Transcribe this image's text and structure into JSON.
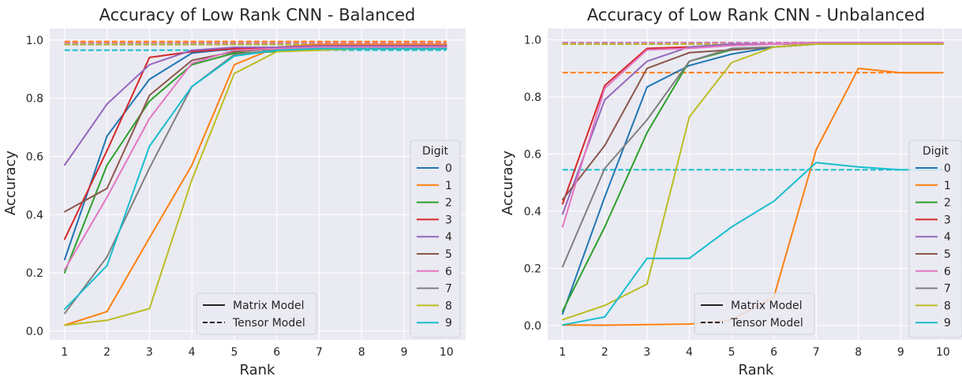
{
  "chart_data": [
    {
      "type": "line",
      "title": "Accuracy of Low Rank CNN - Balanced",
      "xlabel": "Rank",
      "ylabel": "Accuracy",
      "xlim": [
        0.65,
        10.45
      ],
      "ylim": [
        -0.03,
        1.04
      ],
      "xticks": [
        1,
        2,
        3,
        4,
        5,
        6,
        7,
        8,
        9,
        10
      ],
      "yticks": [
        0.0,
        0.2,
        0.4,
        0.6,
        0.8,
        1.0
      ],
      "ytick_labels": [
        "0.0",
        "0.2",
        "0.4",
        "0.6",
        "0.8",
        "1.0"
      ],
      "grid": true,
      "legend_title": "Digit",
      "legend_position": "center-right",
      "style_legend_position": "bottom-center",
      "x": [
        1,
        2,
        3,
        4,
        5,
        6,
        7,
        8,
        9,
        10
      ],
      "series": [
        {
          "name": "0",
          "color": "#1f77b4",
          "values": [
            0.245,
            0.67,
            0.865,
            0.955,
            0.97,
            0.975,
            0.98,
            0.98,
            0.98,
            0.98
          ]
        },
        {
          "name": "1",
          "color": "#ff7f0e",
          "values": [
            0.02,
            0.067,
            0.32,
            0.57,
            0.915,
            0.975,
            0.985,
            0.985,
            0.985,
            0.985
          ]
        },
        {
          "name": "2",
          "color": "#2ca02c",
          "values": [
            0.2,
            0.57,
            0.79,
            0.915,
            0.955,
            0.96,
            0.97,
            0.97,
            0.97,
            0.97
          ]
        },
        {
          "name": "3",
          "color": "#d62728",
          "values": [
            0.315,
            0.62,
            0.94,
            0.96,
            0.97,
            0.975,
            0.98,
            0.98,
            0.98,
            0.98
          ]
        },
        {
          "name": "4",
          "color": "#9467bd",
          "values": [
            0.57,
            0.78,
            0.915,
            0.965,
            0.975,
            0.975,
            0.98,
            0.98,
            0.98,
            0.98
          ]
        },
        {
          "name": "5",
          "color": "#8c564b",
          "values": [
            0.41,
            0.49,
            0.81,
            0.93,
            0.96,
            0.97,
            0.975,
            0.975,
            0.975,
            0.975
          ]
        },
        {
          "name": "6",
          "color": "#e377c2",
          "values": [
            0.21,
            0.46,
            0.73,
            0.92,
            0.965,
            0.97,
            0.975,
            0.975,
            0.975,
            0.975
          ]
        },
        {
          "name": "7",
          "color": "#7f7f7f",
          "values": [
            0.06,
            0.255,
            0.56,
            0.84,
            0.95,
            0.965,
            0.97,
            0.97,
            0.97,
            0.97
          ]
        },
        {
          "name": "8",
          "color": "#bcbd22",
          "values": [
            0.02,
            0.037,
            0.077,
            0.52,
            0.885,
            0.96,
            0.965,
            0.97,
            0.97,
            0.97
          ]
        },
        {
          "name": "9",
          "color": "#17becf",
          "values": [
            0.075,
            0.225,
            0.635,
            0.84,
            0.945,
            0.965,
            0.97,
            0.97,
            0.97,
            0.97
          ]
        }
      ],
      "tensor_reference": [
        0.985,
        0.995,
        0.99,
        0.985,
        0.99,
        0.985,
        0.99,
        0.985,
        0.985,
        0.965
      ],
      "style_legend": [
        "Matrix Model",
        "Tensor Model"
      ]
    },
    {
      "type": "line",
      "title": "Accuracy of Low Rank CNN - Unbalanced",
      "xlabel": "Rank",
      "ylabel": "Accuracy",
      "xlim": [
        0.65,
        10.45
      ],
      "ylim": [
        -0.05,
        1.04
      ],
      "xticks": [
        1,
        2,
        3,
        4,
        5,
        6,
        7,
        8,
        9,
        10
      ],
      "yticks": [
        0.0,
        0.2,
        0.4,
        0.6,
        0.8,
        1.0
      ],
      "ytick_labels": [
        "0.0",
        "0.2",
        "0.4",
        "0.6",
        "0.8",
        "1.0"
      ],
      "grid": true,
      "legend_title": "Digit",
      "legend_position": "right",
      "style_legend_position": "bottom-center",
      "x": [
        1,
        2,
        3,
        4,
        5,
        6,
        7,
        8,
        9,
        10
      ],
      "series": [
        {
          "name": "0",
          "color": "#1f77b4",
          "values": [
            0.04,
            0.45,
            0.835,
            0.91,
            0.95,
            0.975,
            0.985,
            0.985,
            0.985,
            0.985
          ]
        },
        {
          "name": "1",
          "color": "#ff7f0e",
          "values": [
            0.002,
            0.001,
            0.003,
            0.005,
            0.02,
            0.1,
            0.615,
            0.9,
            0.885,
            0.885
          ]
        },
        {
          "name": "2",
          "color": "#2ca02c",
          "values": [
            0.05,
            0.345,
            0.675,
            0.925,
            0.965,
            0.975,
            0.985,
            0.985,
            0.985,
            0.985
          ]
        },
        {
          "name": "3",
          "color": "#d62728",
          "values": [
            0.425,
            0.84,
            0.97,
            0.975,
            0.98,
            0.985,
            0.99,
            0.99,
            0.99,
            0.99
          ]
        },
        {
          "name": "4",
          "color": "#9467bd",
          "values": [
            0.39,
            0.79,
            0.925,
            0.975,
            0.985,
            0.985,
            0.99,
            0.99,
            0.99,
            0.99
          ]
        },
        {
          "name": "5",
          "color": "#8c564b",
          "values": [
            0.44,
            0.63,
            0.9,
            0.955,
            0.965,
            0.975,
            0.985,
            0.985,
            0.985,
            0.985
          ]
        },
        {
          "name": "6",
          "color": "#e377c2",
          "values": [
            0.345,
            0.83,
            0.965,
            0.97,
            0.98,
            0.985,
            0.99,
            0.99,
            0.99,
            0.99
          ]
        },
        {
          "name": "7",
          "color": "#7f7f7f",
          "values": [
            0.205,
            0.55,
            0.72,
            0.925,
            0.97,
            0.975,
            0.985,
            0.985,
            0.985,
            0.985
          ]
        },
        {
          "name": "8",
          "color": "#bcbd22",
          "values": [
            0.02,
            0.07,
            0.145,
            0.73,
            0.92,
            0.975,
            0.985,
            0.985,
            0.985,
            0.985
          ]
        },
        {
          "name": "9",
          "color": "#17becf",
          "values": [
            0.002,
            0.03,
            0.235,
            0.235,
            0.345,
            0.435,
            0.57,
            0.555,
            0.545,
            0.545
          ]
        }
      ],
      "tensor_reference": [
        0.985,
        0.885,
        0.99,
        0.985,
        0.99,
        0.985,
        0.99,
        0.985,
        0.985,
        0.545
      ],
      "style_legend": [
        "Matrix Model",
        "Tensor Model"
      ]
    }
  ]
}
